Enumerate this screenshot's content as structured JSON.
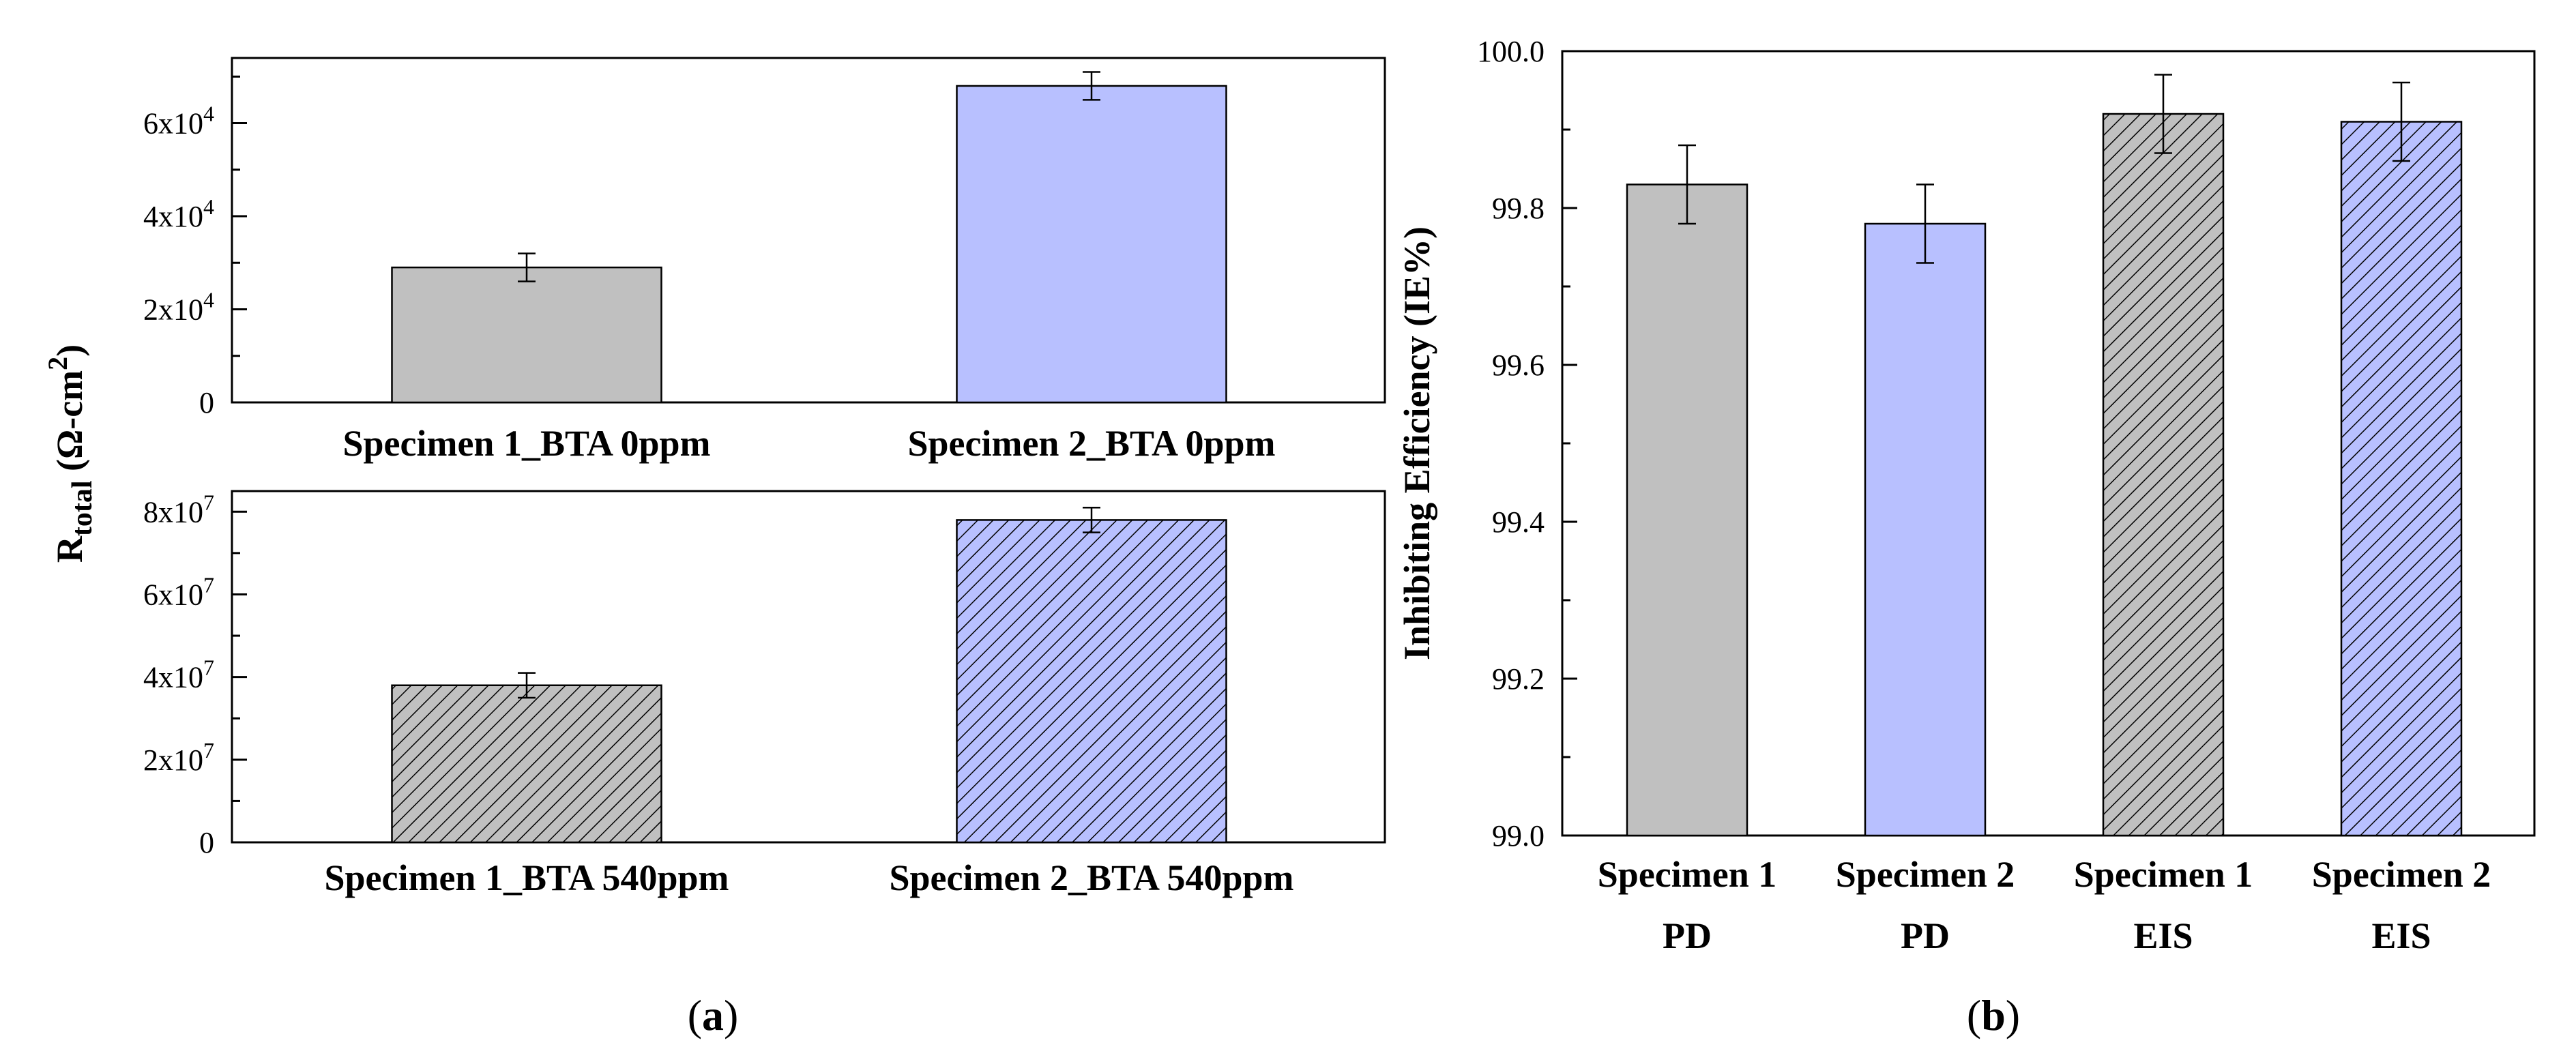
{
  "colors": {
    "gray": "#c0c0c0",
    "blue": "#b8c0ff",
    "hatch_gray_bg": "#c0c0c0",
    "hatch_blue_bg": "#b8c0ff",
    "hatch_line": "#000000"
  },
  "chart_data": [
    {
      "id": "a-top",
      "type": "bar",
      "categories": [
        "Specimen 1_BTA 0ppm",
        "Specimen 2_BTA 0ppm"
      ],
      "values": [
        29000,
        68000
      ],
      "errors": [
        3000,
        3000
      ],
      "fills": [
        "gray",
        "blue"
      ],
      "patterns": [
        "solid",
        "solid"
      ],
      "ylim": [
        0,
        74000
      ],
      "ticks": [
        0,
        20000,
        40000,
        60000
      ],
      "tick_labels": [
        "0",
        "2x10",
        "4x10",
        "6x10"
      ],
      "tick_sups": [
        "",
        "4",
        "4",
        "4"
      ],
      "ylabel": "R",
      "ylabel_sub": "total",
      "ylabel_unit": " (Ω-cm",
      "ylabel_sup": "2",
      "ylabel_close": ")"
    },
    {
      "id": "a-bottom",
      "type": "bar",
      "categories": [
        "Specimen 1_BTA 540ppm",
        "Specimen 2_BTA 540ppm"
      ],
      "values": [
        38000000,
        78000000
      ],
      "errors": [
        3000000,
        3000000
      ],
      "fills": [
        "gray",
        "blue"
      ],
      "patterns": [
        "hatched",
        "hatched"
      ],
      "ylim": [
        0,
        85000000
      ],
      "ticks": [
        0,
        20000000,
        40000000,
        60000000,
        80000000
      ],
      "tick_labels": [
        "0",
        "2x10",
        "4x10",
        "6x10",
        "8x10"
      ],
      "tick_sups": [
        "",
        "7",
        "7",
        "7",
        "7"
      ]
    },
    {
      "id": "b",
      "type": "bar",
      "categories": [
        "Specimen 1",
        "Specimen 2",
        "Specimen 1",
        "Specimen 2"
      ],
      "categories_line2": [
        "PD",
        "PD",
        "EIS",
        "EIS"
      ],
      "values": [
        99.83,
        99.78,
        99.92,
        99.91
      ],
      "errors": [
        0.05,
        0.05,
        0.05,
        0.05
      ],
      "fills": [
        "gray",
        "blue",
        "gray",
        "blue"
      ],
      "patterns": [
        "solid",
        "solid",
        "hatched",
        "hatched"
      ],
      "ylim": [
        99.0,
        100.0
      ],
      "ticks": [
        99.0,
        99.2,
        99.4,
        99.6,
        99.8,
        100.0
      ],
      "tick_labels": [
        "99.0",
        "99.2",
        "99.4",
        "99.6",
        "99.8",
        "100.0"
      ],
      "ylabel": "Inhibiting Efficiency (IE%)"
    }
  ],
  "panel_labels": {
    "a": {
      "open": "(",
      "letter": "a",
      "close": ")"
    },
    "b": {
      "open": "(",
      "letter": "b",
      "close": ")"
    }
  }
}
